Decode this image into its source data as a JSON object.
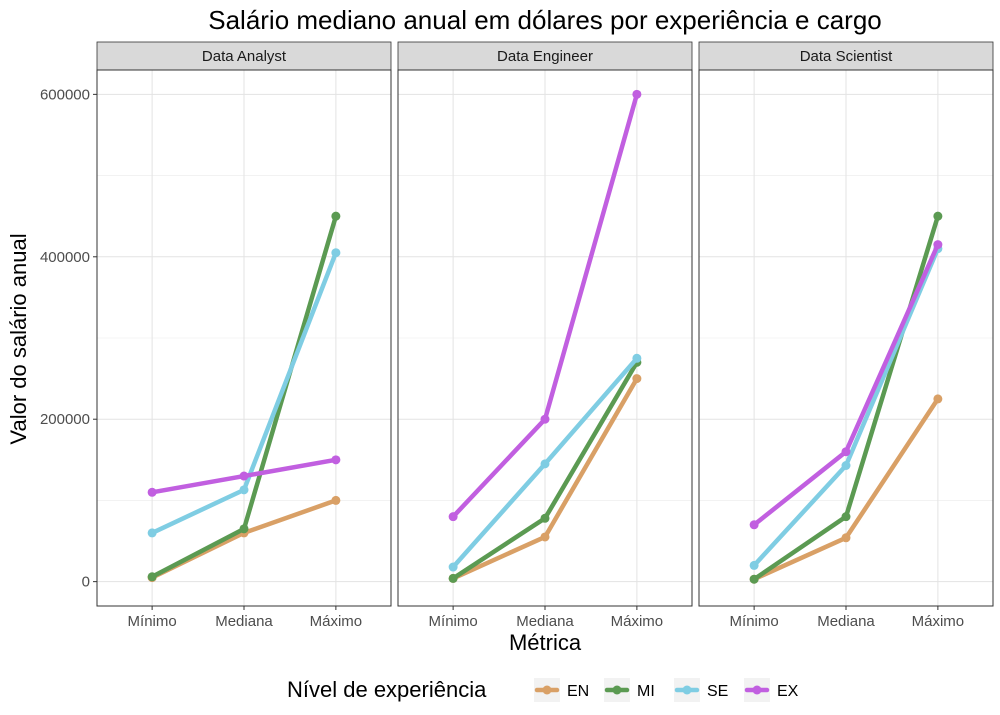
{
  "chart_data": {
    "type": "line",
    "title": "Salário mediano anual em dólares por experiência e cargo",
    "xlabel": "Métrica",
    "ylabel": "Valor do salário anual",
    "categories": [
      "Mínimo",
      "Mediana",
      "Máximo"
    ],
    "y_ticks": [
      {
        "value": 0,
        "label": "0"
      },
      {
        "value": 200000,
        "label": "200000"
      },
      {
        "value": 400000,
        "label": "400000"
      },
      {
        "value": 600000,
        "label": "600000"
      }
    ],
    "ylim": [
      -30000,
      630000
    ],
    "grid": true,
    "legend": {
      "title": "Nível de experiência",
      "placement": "bottom",
      "entries": [
        {
          "key": "EN",
          "label": "EN",
          "color": "#D9A066"
        },
        {
          "key": "MI",
          "label": "MI",
          "color": "#5B9A52"
        },
        {
          "key": "SE",
          "label": "SE",
          "color": "#7FCDE3"
        },
        {
          "key": "EX",
          "label": "EX",
          "color": "#C15FE0"
        }
      ]
    },
    "panels": [
      {
        "name": "Data Analyst",
        "series": [
          {
            "key": "EN",
            "values": [
              5000,
              60000,
              100000
            ]
          },
          {
            "key": "MI",
            "values": [
              6000,
              65000,
              450000
            ]
          },
          {
            "key": "SE",
            "values": [
              60000,
              113000,
              405000
            ]
          },
          {
            "key": "EX",
            "values": [
              110000,
              130000,
              150000
            ]
          }
        ]
      },
      {
        "name": "Data Engineer",
        "series": [
          {
            "key": "EN",
            "values": [
              4000,
              55000,
              250000
            ]
          },
          {
            "key": "MI",
            "values": [
              4000,
              78000,
              270000
            ]
          },
          {
            "key": "SE",
            "values": [
              18000,
              145000,
              275000
            ]
          },
          {
            "key": "EX",
            "values": [
              80000,
              200000,
              600000
            ]
          }
        ]
      },
      {
        "name": "Data Scientist",
        "series": [
          {
            "key": "EN",
            "values": [
              3000,
              54000,
              225000
            ]
          },
          {
            "key": "MI",
            "values": [
              3000,
              80000,
              450000
            ]
          },
          {
            "key": "SE",
            "values": [
              20000,
              143000,
              410000
            ]
          },
          {
            "key": "EX",
            "values": [
              70000,
              160000,
              415000
            ]
          }
        ]
      }
    ]
  }
}
